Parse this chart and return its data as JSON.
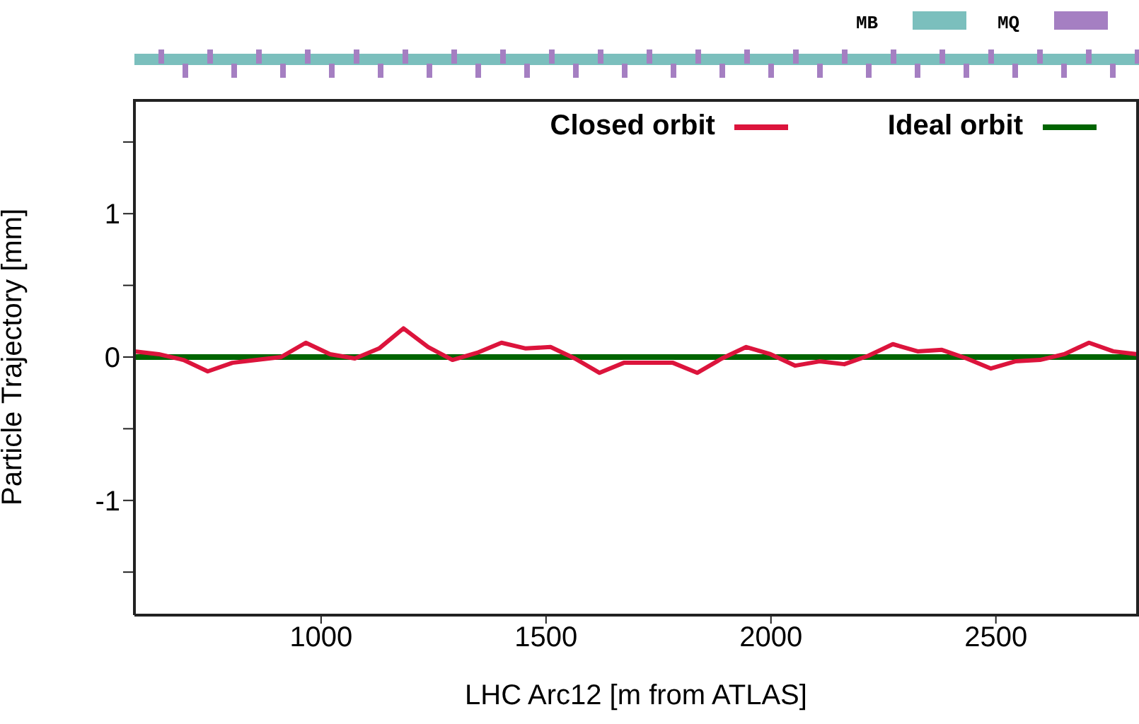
{
  "chart_data": {
    "type": "line",
    "xlabel": "LHC Arc12   [m from ATLAS]",
    "ylabel": "Particle Trajectory  [mm]",
    "xlim": [
      585,
      2815
    ],
    "ylim": [
      -1.8,
      1.8
    ],
    "xticks": [
      1000,
      1500,
      2000,
      2500
    ],
    "yticks": [
      {
        "value": -1.5,
        "label": null
      },
      -1,
      {
        "value": -0.5,
        "label": null
      },
      0,
      {
        "value": 0.5,
        "label": null
      },
      1,
      {
        "value": 1.5,
        "label": null
      }
    ],
    "grid": false,
    "legend": "top right",
    "marker": "none",
    "line_style": "solid",
    "annotations": [
      "MB",
      "MQ"
    ],
    "series": [
      {
        "name": "Closed orbit",
        "color": "#dc143c",
        "x": [
          585,
          639,
          694,
          748,
          803,
          857,
          911,
          966,
          1020,
          1075,
          1129,
          1183,
          1238,
          1292,
          1347,
          1401,
          1455,
          1510,
          1564,
          1619,
          1673,
          1727,
          1782,
          1836,
          1891,
          1945,
          1999,
          2054,
          2108,
          2163,
          2217,
          2271,
          2326,
          2380,
          2435,
          2489,
          2543,
          2598,
          2652,
          2707,
          2761,
          2815
        ],
        "values": [
          0.04,
          0.02,
          -0.02,
          -0.1,
          -0.04,
          -0.02,
          0,
          0.1,
          0.02,
          -0.01,
          0.06,
          0.2,
          0.07,
          -0.02,
          0.03,
          0.1,
          0.06,
          0.07,
          -0.01,
          -0.11,
          -0.04,
          -0.04,
          -0.04,
          -0.11,
          -0.01,
          0.07,
          0.02,
          -0.06,
          -0.03,
          -0.05,
          0.01,
          0.09,
          0.04,
          0.05,
          -0.01,
          -0.08,
          -0.03,
          -0.02,
          0.02,
          0.1,
          0.04,
          0.02
        ]
      },
      {
        "name": "Ideal orbit",
        "color": "#006400",
        "x": [
          585,
          2815
        ],
        "values": [
          0,
          0
        ]
      }
    ]
  }
}
